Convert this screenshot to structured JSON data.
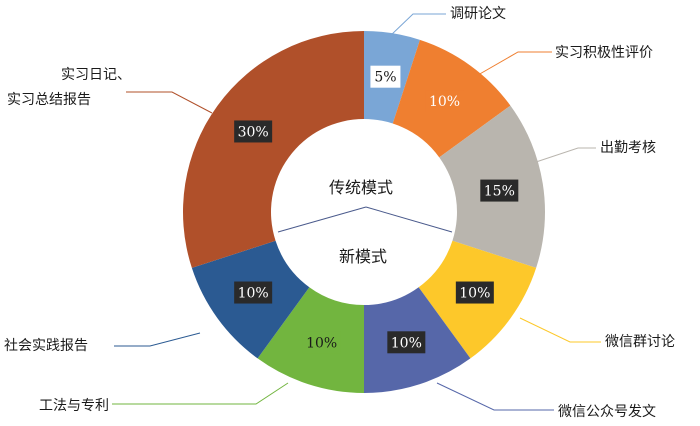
{
  "chart_data": {
    "type": "pie",
    "variant": "donut",
    "categories": [
      "调研论文",
      "实习积极性评价",
      "出勤考核",
      "微信群讨论",
      "微信公众号发文",
      "工法与专利",
      "社会实践报告",
      "实习日记、实习总结报告"
    ],
    "values": [
      5,
      10,
      15,
      10,
      10,
      10,
      10,
      30
    ],
    "value_labels": [
      "5%",
      "10%",
      "15%",
      "10%",
      "10%",
      "10%",
      "10%",
      "30%"
    ],
    "colors": [
      "#7aa6d6",
      "#ef7f30",
      "#b9b5ae",
      "#fdc82a",
      "#5667a9",
      "#72b53f",
      "#2b5a92",
      "#b0502a"
    ],
    "label_box_colors": [
      "#ffffff",
      "#ef7f30",
      "#2a2a2a",
      "#2a2a2a",
      "#2a2a2a",
      "#72b53f",
      "#2a2a2a",
      "#2a2a2a"
    ],
    "label_text_colors": [
      "#1a1a1a",
      "#ffffff",
      "#ffffff",
      "#ffffff",
      "#ffffff",
      "#1a1a1a",
      "#ffffff",
      "#ffffff"
    ],
    "center_labels": {
      "top": "传统模式",
      "bottom": "新模式"
    },
    "title": "",
    "legend": "none"
  }
}
